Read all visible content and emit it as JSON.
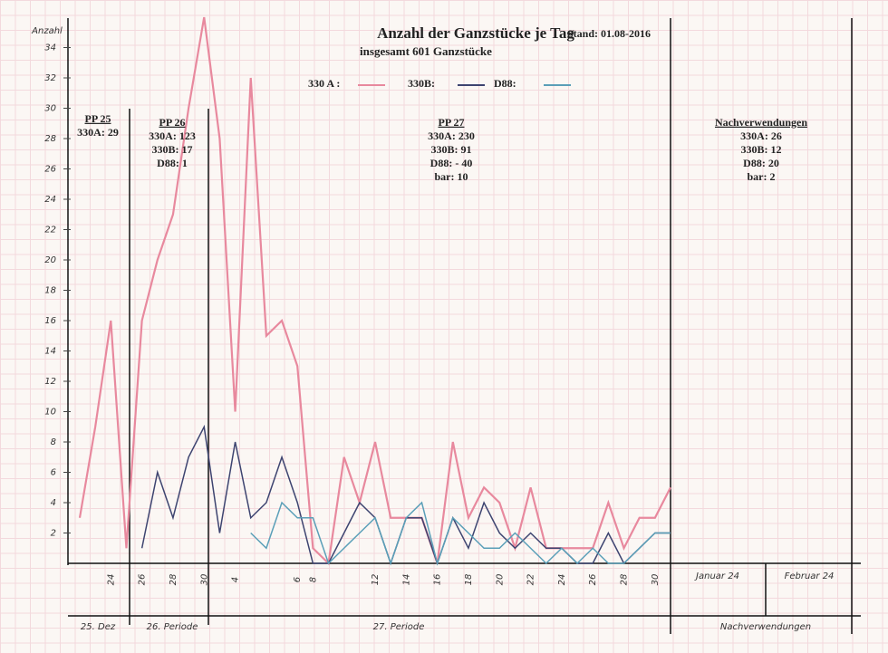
{
  "chart_data": {
    "type": "line",
    "title": "Anzahl der Ganzstücke je Tag",
    "subtitle": "insgesamt 601 Ganzstücke",
    "stand": "Stand: 01.08-2016",
    "y_label": "Anzahl",
    "categories": [
      null,
      null,
      "24",
      null,
      "26",
      null,
      "28",
      null,
      "30",
      null,
      "4",
      null,
      null,
      null,
      "6",
      "8",
      null,
      null,
      null,
      "12",
      null,
      "14",
      null,
      "16",
      null,
      "18",
      null,
      "20",
      null,
      "22",
      null,
      "24",
      null,
      "26",
      null,
      "28",
      null,
      "30",
      null
    ],
    "series": [
      {
        "name": "330 A :",
        "color": "#e8899e",
        "values": [
          3,
          9,
          16,
          1,
          16,
          20,
          23,
          30,
          36,
          28,
          10,
          32,
          15,
          16,
          13,
          1,
          0,
          7,
          4,
          8,
          3,
          3,
          3,
          0,
          8,
          3,
          5,
          4,
          1,
          5,
          1,
          1,
          1,
          1,
          4,
          1,
          3,
          3,
          5
        ]
      },
      {
        "name": "330B:",
        "color": "#3d4470",
        "values": [
          null,
          null,
          null,
          null,
          1,
          6,
          3,
          7,
          9,
          2,
          8,
          3,
          4,
          7,
          4,
          0,
          0,
          2,
          4,
          3,
          0,
          3,
          3,
          0,
          3,
          1,
          4,
          2,
          1,
          2,
          1,
          1,
          0,
          0,
          2,
          0,
          1,
          2,
          2
        ]
      },
      {
        "name": "D88:",
        "color": "#5a9fb8",
        "values": [
          null,
          null,
          null,
          null,
          null,
          null,
          null,
          null,
          null,
          null,
          null,
          2,
          1,
          4,
          3,
          3,
          0,
          1,
          2,
          3,
          0,
          3,
          4,
          0,
          3,
          2,
          1,
          1,
          2,
          1,
          0,
          1,
          0,
          1,
          0,
          0,
          1,
          2,
          2
        ]
      }
    ],
    "ylim": [
      0,
      36
    ],
    "yticks": [
      2,
      4,
      6,
      8,
      10,
      12,
      14,
      16,
      18,
      20,
      22,
      24,
      26,
      28,
      30,
      32,
      34
    ],
    "annotations": [
      [
        "PP 25",
        "330A: 29"
      ],
      [
        "PP 26",
        "330A: 123",
        "330B:  17",
        "D88:   1"
      ],
      [
        "PP 27",
        "330A: 230",
        "330B:  91",
        "D88: - 40",
        "bar:  10"
      ],
      [
        "Nachverwendungen",
        "330A: 26",
        "330B: 12",
        "D88: 20",
        "bar:  2"
      ]
    ],
    "periods": [
      "25. Dez",
      "26. Periode",
      "27. Periode",
      "Nachverwendungen"
    ],
    "months": [
      "Januar 24",
      "Februar 24"
    ]
  }
}
